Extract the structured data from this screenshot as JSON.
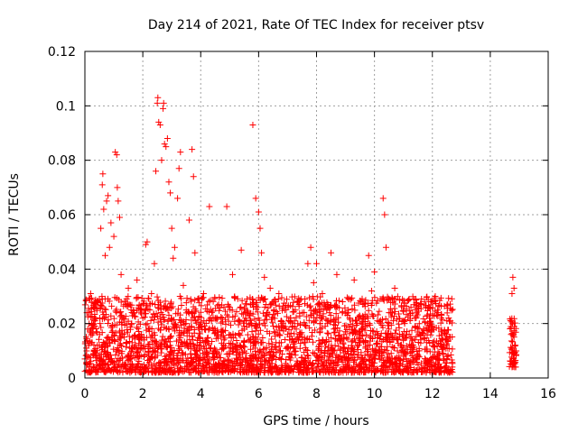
{
  "chart_data": {
    "type": "scatter",
    "title": "Day 214 of 2021, Rate Of TEC Index for receiver ptsv",
    "xlabel": "GPS time / hours",
    "ylabel": "ROTI / TECUs",
    "xlim": [
      0,
      16
    ],
    "ylim": [
      0,
      0.12
    ],
    "x_ticks": [
      0,
      2,
      4,
      6,
      8,
      10,
      12,
      14,
      16
    ],
    "x_tick_labels": [
      "0",
      "2",
      "4",
      "6",
      "8",
      "10",
      "12",
      "14",
      "16"
    ],
    "y_ticks": [
      0,
      0.02,
      0.04,
      0.06,
      0.08,
      0.1,
      0.12
    ],
    "y_tick_labels": [
      "0",
      "0.02",
      "0.04",
      "0.06",
      "0.08",
      "0.1",
      "0.12"
    ],
    "grid": true,
    "marker": "+",
    "series": [
      {
        "name": "ROTI",
        "color": "#ff0000",
        "points": [
          [
            0.0,
            0.007
          ],
          [
            0.05,
            0.011
          ],
          [
            0.1,
            0.018
          ],
          [
            0.15,
            0.024
          ],
          [
            0.2,
            0.031
          ],
          [
            0.25,
            0.013
          ],
          [
            0.3,
            0.009
          ],
          [
            0.35,
            0.021
          ],
          [
            0.4,
            0.017
          ],
          [
            0.45,
            0.028
          ],
          [
            0.5,
            0.012
          ],
          [
            0.55,
            0.055
          ],
          [
            0.6,
            0.071
          ],
          [
            0.62,
            0.075
          ],
          [
            0.65,
            0.062
          ],
          [
            0.7,
            0.045
          ],
          [
            0.75,
            0.065
          ],
          [
            0.8,
            0.067
          ],
          [
            0.85,
            0.048
          ],
          [
            0.9,
            0.057
          ],
          [
            0.95,
            0.019
          ],
          [
            1.0,
            0.052
          ],
          [
            1.05,
            0.083
          ],
          [
            1.1,
            0.082
          ],
          [
            1.12,
            0.07
          ],
          [
            1.15,
            0.065
          ],
          [
            1.2,
            0.059
          ],
          [
            1.25,
            0.038
          ],
          [
            1.3,
            0.016
          ],
          [
            1.4,
            0.027
          ],
          [
            1.5,
            0.033
          ],
          [
            1.6,
            0.011
          ],
          [
            1.7,
            0.024
          ],
          [
            1.8,
            0.036
          ],
          [
            1.9,
            0.014
          ],
          [
            2.0,
            0.022
          ],
          [
            2.1,
            0.049
          ],
          [
            2.15,
            0.05
          ],
          [
            2.2,
            0.018
          ],
          [
            2.3,
            0.031
          ],
          [
            2.4,
            0.042
          ],
          [
            2.45,
            0.076
          ],
          [
            2.5,
            0.101
          ],
          [
            2.52,
            0.103
          ],
          [
            2.55,
            0.094
          ],
          [
            2.6,
            0.093
          ],
          [
            2.65,
            0.08
          ],
          [
            2.7,
            0.099
          ],
          [
            2.72,
            0.101
          ],
          [
            2.75,
            0.086
          ],
          [
            2.8,
            0.085
          ],
          [
            2.85,
            0.088
          ],
          [
            2.9,
            0.072
          ],
          [
            2.95,
            0.068
          ],
          [
            3.0,
            0.055
          ],
          [
            3.05,
            0.044
          ],
          [
            3.1,
            0.048
          ],
          [
            3.2,
            0.066
          ],
          [
            3.25,
            0.077
          ],
          [
            3.3,
            0.083
          ],
          [
            3.4,
            0.034
          ],
          [
            3.5,
            0.025
          ],
          [
            3.6,
            0.058
          ],
          [
            3.7,
            0.084
          ],
          [
            3.75,
            0.074
          ],
          [
            3.8,
            0.046
          ],
          [
            3.9,
            0.029
          ],
          [
            4.0,
            0.019
          ],
          [
            4.1,
            0.031
          ],
          [
            4.3,
            0.063
          ],
          [
            4.5,
            0.022
          ],
          [
            4.7,
            0.017
          ],
          [
            4.9,
            0.063
          ],
          [
            5.0,
            0.026
          ],
          [
            5.1,
            0.038
          ],
          [
            5.2,
            0.011
          ],
          [
            5.3,
            0.021
          ],
          [
            5.4,
            0.047
          ],
          [
            5.5,
            0.018
          ],
          [
            5.6,
            0.029
          ],
          [
            5.7,
            0.014
          ],
          [
            5.8,
            0.093
          ],
          [
            5.9,
            0.066
          ],
          [
            6.0,
            0.061
          ],
          [
            6.05,
            0.055
          ],
          [
            6.1,
            0.046
          ],
          [
            6.2,
            0.037
          ],
          [
            6.3,
            0.024
          ],
          [
            6.4,
            0.033
          ],
          [
            6.5,
            0.028
          ],
          [
            6.6,
            0.013
          ],
          [
            6.7,
            0.031
          ],
          [
            6.8,
            0.019
          ],
          [
            6.9,
            0.025
          ],
          [
            7.0,
            0.016
          ],
          [
            7.1,
            0.022
          ],
          [
            7.2,
            0.011
          ],
          [
            7.3,
            0.018
          ],
          [
            7.4,
            0.027
          ],
          [
            7.5,
            0.015
          ],
          [
            7.6,
            0.029
          ],
          [
            7.7,
            0.042
          ],
          [
            7.8,
            0.048
          ],
          [
            7.9,
            0.035
          ],
          [
            8.0,
            0.042
          ],
          [
            8.1,
            0.023
          ],
          [
            8.2,
            0.031
          ],
          [
            8.3,
            0.019
          ],
          [
            8.4,
            0.026
          ],
          [
            8.5,
            0.046
          ],
          [
            8.6,
            0.018
          ],
          [
            8.7,
            0.038
          ],
          [
            8.8,
            0.014
          ],
          [
            8.9,
            0.028
          ],
          [
            9.0,
            0.017
          ],
          [
            9.1,
            0.024
          ],
          [
            9.2,
            0.011
          ],
          [
            9.3,
            0.036
          ],
          [
            9.4,
            0.02
          ],
          [
            9.5,
            0.013
          ],
          [
            9.6,
            0.027
          ],
          [
            9.7,
            0.019
          ],
          [
            9.8,
            0.045
          ],
          [
            9.9,
            0.032
          ],
          [
            10.0,
            0.039
          ],
          [
            10.1,
            0.021
          ],
          [
            10.2,
            0.029
          ],
          [
            10.3,
            0.066
          ],
          [
            10.35,
            0.06
          ],
          [
            10.4,
            0.048
          ],
          [
            10.5,
            0.018
          ],
          [
            10.6,
            0.024
          ],
          [
            10.7,
            0.033
          ],
          [
            10.8,
            0.014
          ],
          [
            10.9,
            0.012
          ],
          [
            11.0,
            0.021
          ],
          [
            11.1,
            0.009
          ],
          [
            11.2,
            0.016
          ],
          [
            11.3,
            0.011
          ],
          [
            11.4,
            0.019
          ],
          [
            11.5,
            0.008
          ],
          [
            11.6,
            0.014
          ],
          [
            11.7,
            0.018
          ],
          [
            11.8,
            0.013
          ],
          [
            11.9,
            0.022
          ],
          [
            12.0,
            0.019
          ],
          [
            12.1,
            0.03
          ],
          [
            12.2,
            0.024
          ],
          [
            12.3,
            0.017
          ],
          [
            12.4,
            0.012
          ],
          [
            12.5,
            0.021
          ],
          [
            12.6,
            0.015
          ],
          [
            14.7,
            0.021
          ],
          [
            14.72,
            0.016
          ],
          [
            14.75,
            0.031
          ],
          [
            14.78,
            0.037
          ],
          [
            14.8,
            0.009
          ],
          [
            14.82,
            0.033
          ],
          [
            14.85,
            0.012
          ],
          [
            14.88,
            0.004
          ]
        ]
      }
    ],
    "dense_bands": [
      {
        "x_start": 0.0,
        "x_end": 12.7,
        "y_low": 0.002,
        "y_high": 0.03
      },
      {
        "x_start": 14.65,
        "x_end": 14.9,
        "y_low": 0.004,
        "y_high": 0.022
      }
    ]
  }
}
